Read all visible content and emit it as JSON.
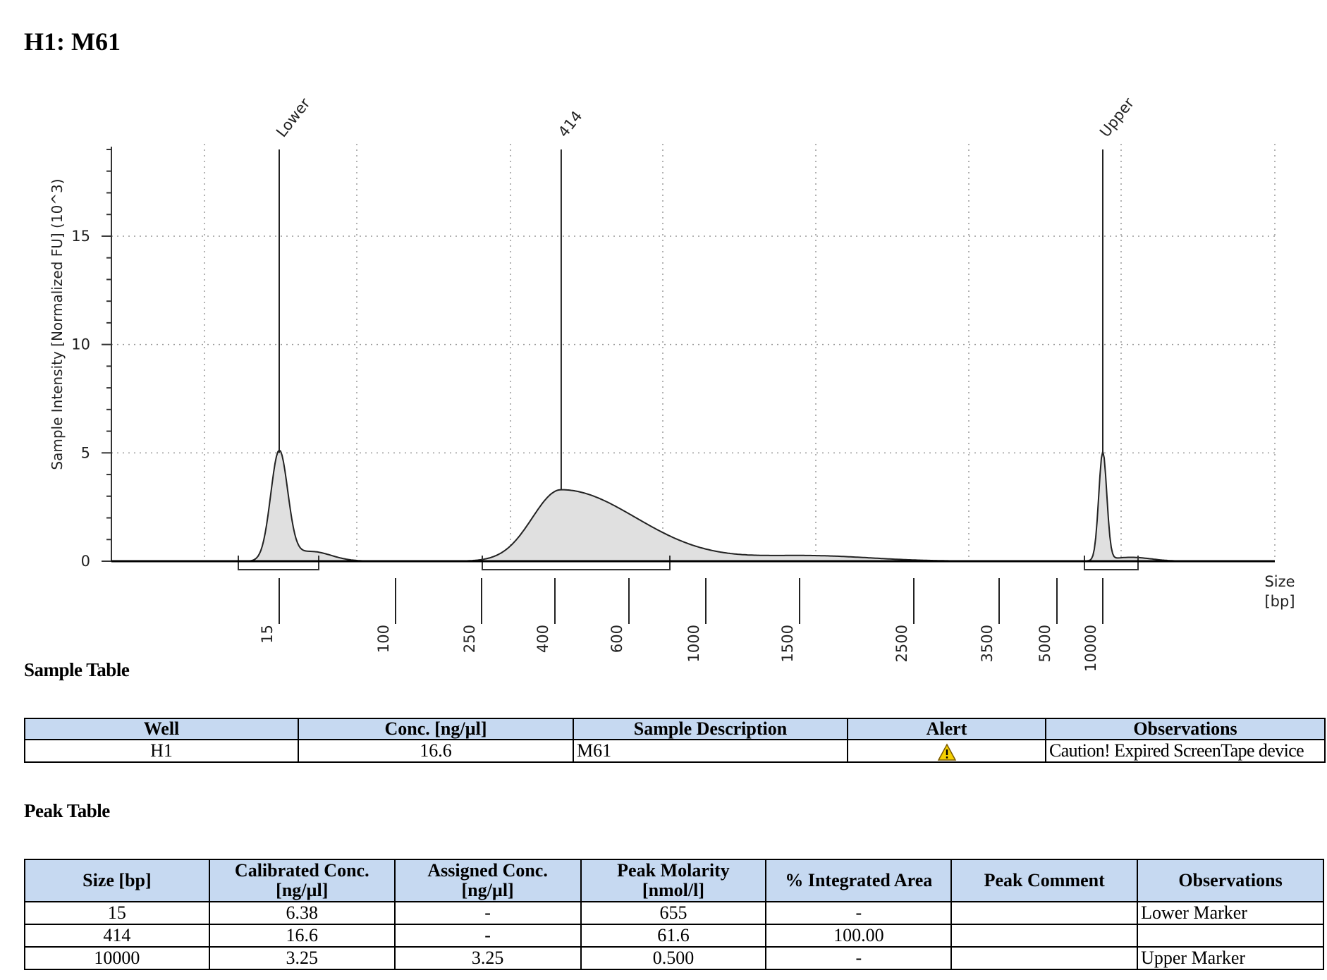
{
  "page": {
    "title": "H1: M61"
  },
  "chart_data": {
    "type": "line",
    "title": "",
    "ylabel": "Sample Intensity [Normalized FU] (10^3)",
    "xlabel": "Size\n[bp]",
    "xlabel_line1": "Size",
    "xlabel_line2": "[bp]",
    "ylim": [
      0,
      19
    ],
    "y_ticks": [
      0,
      5,
      10,
      15
    ],
    "x_tick_labels": [
      "15",
      "100",
      "250",
      "400",
      "600",
      "1000",
      "1500",
      "2500",
      "3500",
      "5000",
      "10000"
    ],
    "peaks": [
      {
        "label": "Lower",
        "size_bp": 15,
        "height": 5.0
      },
      {
        "label": "414",
        "size_bp": 414,
        "height": 3.3
      },
      {
        "label": "Upper",
        "size_bp": 10000,
        "height": 5.0
      }
    ],
    "series": [
      {
        "name": "Sample Intensity",
        "fill": "#e0e0e0",
        "stroke": "#222222"
      }
    ],
    "grid": true
  },
  "sample_table": {
    "title": "Sample Table",
    "headers": [
      "Well",
      "Conc. [ng/µl]",
      "Sample Description",
      "Alert",
      "Observations"
    ],
    "rows": [
      {
        "well": "H1",
        "conc": "16.6",
        "description": "M61",
        "alert": "warning",
        "observations": "Caution! Expired ScreenTape device"
      }
    ]
  },
  "peak_table": {
    "title": "Peak Table",
    "headers": [
      {
        "line1": "Size [bp]",
        "line2": ""
      },
      {
        "line1": "Calibrated Conc.",
        "line2": "[ng/µl]"
      },
      {
        "line1": "Assigned Conc.",
        "line2": "[ng/µl]"
      },
      {
        "line1": "Peak Molarity",
        "line2": "[nmol/l]"
      },
      {
        "line1": "% Integrated Area",
        "line2": ""
      },
      {
        "line1": "Peak Comment",
        "line2": ""
      },
      {
        "line1": "Observations",
        "line2": ""
      }
    ],
    "rows": [
      {
        "size": "15",
        "cal_conc": "6.38",
        "assigned_conc": "-",
        "molarity": "655",
        "area": "-",
        "comment": "",
        "observations": "Lower Marker"
      },
      {
        "size": "414",
        "cal_conc": "16.6",
        "assigned_conc": "-",
        "molarity": "61.6",
        "area": "100.00",
        "comment": "",
        "observations": ""
      },
      {
        "size": "10000",
        "cal_conc": "3.25",
        "assigned_conc": "3.25",
        "molarity": "0.500",
        "area": "-",
        "comment": "",
        "observations": "Upper Marker"
      }
    ]
  },
  "colors": {
    "header_bg": "#c6d9f1",
    "curve_fill": "#e0e0e0",
    "alert": "#f5d000"
  },
  "icons": {
    "alert": "warning-triangle-icon"
  }
}
